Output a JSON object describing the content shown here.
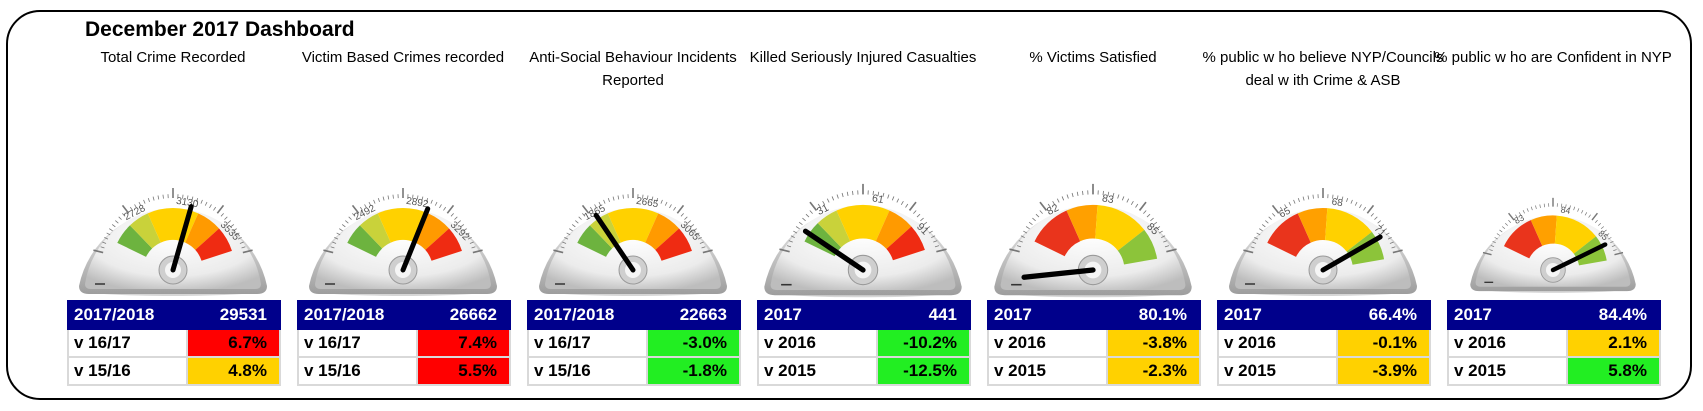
{
  "dashboard": {
    "title": "December 2017 Dashboard"
  },
  "colors": {
    "header_bg": "#00008b",
    "red": "#ff0000",
    "amber": "#ffd100",
    "green": "#22ee22",
    "white": "#ffffff"
  },
  "chart_data": [
    {
      "type": "gauge",
      "title": "Total Crime Recorded",
      "ticks": [
        2728,
        3130,
        3535
      ],
      "value_position": 0.58,
      "table": [
        [
          "2017/2018",
          "29531",
          "header"
        ],
        [
          "v 16/17",
          "6.7%",
          "red"
        ],
        [
          "v 15/16",
          "4.8%",
          "amber"
        ]
      ]
    },
    {
      "type": "gauge",
      "title": "Victim Based Crimes recorded",
      "ticks": [
        2492,
        2892,
        3292
      ],
      "value_position": 0.61,
      "table": [
        [
          "2017/2018",
          "26662",
          "header"
        ],
        [
          "v 16/17",
          "7.4%",
          "red"
        ],
        [
          "v 15/16",
          "5.5%",
          "red"
        ]
      ]
    },
    {
      "type": "gauge",
      "title": "Anti-Social Behaviour Incidents Reported",
      "ticks": [
        1865,
        2665,
        3065
      ],
      "value_position": 0.33,
      "table": [
        [
          "2017/2018",
          "22663",
          "header"
        ],
        [
          "v 16/17",
          "-3.0%",
          "green"
        ],
        [
          "v 15/16",
          "-1.8%",
          "green"
        ]
      ]
    },
    {
      "type": "gauge",
      "title": "Killed Seriously Injured Casualties",
      "ticks": [
        31,
        61,
        91
      ],
      "value_position": 0.22,
      "table": [
        [
          "2017",
          "441",
          "header"
        ],
        [
          "v 2016",
          "-10.2%",
          "green"
        ],
        [
          "v 2015",
          "-12.5%",
          "green"
        ]
      ]
    },
    {
      "type": "gauge",
      "title": "% Victims Satisfied",
      "ticks": [
        82,
        83,
        85
      ],
      "value_position": 0.02,
      "table": [
        [
          "2017",
          "80.1%",
          "header"
        ],
        [
          "v 2016",
          "-3.8%",
          "amber"
        ],
        [
          "v 2015",
          "-2.3%",
          "amber"
        ]
      ]
    },
    {
      "type": "gauge",
      "title": "% public w ho believe NYP/Councils deal w ith Crime & ASB",
      "ticks": [
        65,
        68,
        71
      ],
      "value_position": 0.8,
      "table": [
        [
          "2017",
          "66.4%",
          "header"
        ],
        [
          "v 2016",
          "-0.1%",
          "amber"
        ],
        [
          "v 2015",
          "-3.9%",
          "amber"
        ]
      ]
    },
    {
      "type": "gauge",
      "title": "% public w ho are Confident in NYP",
      "ticks": [
        83,
        84,
        85
      ],
      "value_position": 0.82,
      "table": [
        [
          "2017",
          "84.4%",
          "header"
        ],
        [
          "v 2016",
          "2.1%",
          "amber"
        ],
        [
          "v 2015",
          "5.8%",
          "green"
        ]
      ]
    }
  ]
}
